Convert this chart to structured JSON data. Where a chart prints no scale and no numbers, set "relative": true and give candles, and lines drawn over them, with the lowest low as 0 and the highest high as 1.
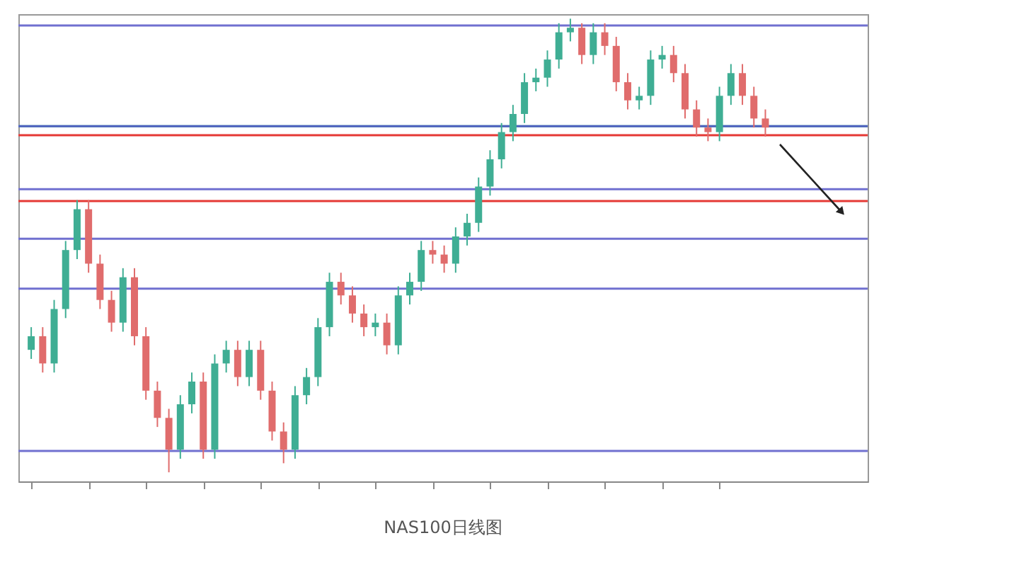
{
  "chart_data": {
    "type": "candlestick",
    "title": "NAS100日线图",
    "relative": true,
    "categories": [
      null,
      null,
      null,
      null,
      null,
      null,
      null,
      null,
      null,
      null,
      null,
      null,
      null,
      null,
      null,
      null,
      null,
      null,
      null,
      null,
      null,
      null,
      null,
      null,
      null,
      null,
      null,
      null,
      null,
      null,
      null,
      null,
      null,
      null,
      null,
      null,
      null,
      null,
      null,
      null,
      null,
      null,
      null,
      null,
      null,
      null,
      null,
      null,
      null,
      null,
      null,
      null,
      null,
      null,
      null,
      null,
      null,
      null,
      null,
      null,
      null,
      null,
      null,
      null,
      null
    ],
    "ohlc": [
      [
        0.27,
        0.32,
        0.25,
        0.3
      ],
      [
        0.3,
        0.32,
        0.22,
        0.24
      ],
      [
        0.24,
        0.38,
        0.22,
        0.36
      ],
      [
        0.36,
        0.51,
        0.34,
        0.49
      ],
      [
        0.49,
        0.6,
        0.47,
        0.58
      ],
      [
        0.58,
        0.6,
        0.44,
        0.46
      ],
      [
        0.46,
        0.48,
        0.36,
        0.38
      ],
      [
        0.38,
        0.4,
        0.31,
        0.33
      ],
      [
        0.33,
        0.45,
        0.31,
        0.43
      ],
      [
        0.43,
        0.45,
        0.28,
        0.3
      ],
      [
        0.3,
        0.32,
        0.16,
        0.18
      ],
      [
        0.18,
        0.2,
        0.1,
        0.12
      ],
      [
        0.12,
        0.14,
        0.0,
        0.05
      ],
      [
        0.05,
        0.17,
        0.03,
        0.15
      ],
      [
        0.15,
        0.22,
        0.13,
        0.2
      ],
      [
        0.2,
        0.22,
        0.03,
        0.05
      ],
      [
        0.05,
        0.26,
        0.03,
        0.24
      ],
      [
        0.24,
        0.29,
        0.22,
        0.27
      ],
      [
        0.27,
        0.29,
        0.19,
        0.21
      ],
      [
        0.21,
        0.29,
        0.19,
        0.27
      ],
      [
        0.27,
        0.29,
        0.16,
        0.18
      ],
      [
        0.18,
        0.2,
        0.07,
        0.09
      ],
      [
        0.09,
        0.11,
        0.02,
        0.05
      ],
      [
        0.05,
        0.19,
        0.03,
        0.17
      ],
      [
        0.17,
        0.23,
        0.15,
        0.21
      ],
      [
        0.21,
        0.34,
        0.19,
        0.32
      ],
      [
        0.32,
        0.44,
        0.3,
        0.42
      ],
      [
        0.42,
        0.44,
        0.37,
        0.39
      ],
      [
        0.39,
        0.41,
        0.33,
        0.35
      ],
      [
        0.35,
        0.37,
        0.3,
        0.32
      ],
      [
        0.32,
        0.35,
        0.3,
        0.33
      ],
      [
        0.33,
        0.35,
        0.26,
        0.28
      ],
      [
        0.28,
        0.41,
        0.26,
        0.39
      ],
      [
        0.39,
        0.44,
        0.37,
        0.42
      ],
      [
        0.42,
        0.51,
        0.4,
        0.49
      ],
      [
        0.49,
        0.51,
        0.46,
        0.48
      ],
      [
        0.48,
        0.5,
        0.44,
        0.46
      ],
      [
        0.46,
        0.54,
        0.44,
        0.52
      ],
      [
        0.52,
        0.57,
        0.5,
        0.55
      ],
      [
        0.55,
        0.65,
        0.53,
        0.63
      ],
      [
        0.63,
        0.71,
        0.61,
        0.69
      ],
      [
        0.69,
        0.77,
        0.67,
        0.75
      ],
      [
        0.75,
        0.81,
        0.73,
        0.79
      ],
      [
        0.79,
        0.88,
        0.77,
        0.86
      ],
      [
        0.86,
        0.89,
        0.84,
        0.87
      ],
      [
        0.87,
        0.93,
        0.85,
        0.91
      ],
      [
        0.91,
        0.99,
        0.89,
        0.97
      ],
      [
        0.97,
        1.0,
        0.95,
        0.98
      ],
      [
        0.98,
        0.99,
        0.9,
        0.92
      ],
      [
        0.92,
        0.99,
        0.9,
        0.97
      ],
      [
        0.97,
        0.99,
        0.92,
        0.94
      ],
      [
        0.94,
        0.96,
        0.84,
        0.86
      ],
      [
        0.86,
        0.88,
        0.8,
        0.82
      ],
      [
        0.82,
        0.85,
        0.8,
        0.83
      ],
      [
        0.83,
        0.93,
        0.81,
        0.91
      ],
      [
        0.91,
        0.94,
        0.89,
        0.92
      ],
      [
        0.92,
        0.94,
        0.86,
        0.88
      ],
      [
        0.88,
        0.9,
        0.78,
        0.8
      ],
      [
        0.8,
        0.82,
        0.74,
        0.76
      ],
      [
        0.76,
        0.78,
        0.73,
        0.75
      ],
      [
        0.75,
        0.85,
        0.73,
        0.83
      ],
      [
        0.83,
        0.9,
        0.81,
        0.88
      ],
      [
        0.88,
        0.9,
        0.81,
        0.83
      ],
      [
        0.83,
        0.85,
        0.76,
        0.78
      ],
      [
        0.78,
        0.8,
        0.74,
        0.76
      ]
    ],
    "colors": [
      "#3fae94",
      "#e06c6c",
      "#3fae94",
      "#3fae94",
      "#3fae94",
      "#e06c6c",
      "#e06c6c",
      "#e06c6c",
      "#3fae94",
      "#e06c6c",
      "#e06c6c",
      "#e06c6c",
      "#e06c6c",
      "#3fae94",
      "#3fae94",
      "#e06c6c",
      "#3fae94",
      "#3fae94",
      "#e06c6c",
      "#3fae94",
      "#e06c6c",
      "#e06c6c",
      "#e06c6c",
      "#3fae94",
      "#3fae94",
      "#3fae94",
      "#3fae94",
      "#e06c6c",
      "#e06c6c",
      "#e06c6c",
      "#3fae94",
      "#e06c6c",
      "#3fae94",
      "#3fae94",
      "#3fae94",
      "#e06c6c",
      "#e06c6c",
      "#3fae94",
      "#3fae94",
      "#3fae94",
      "#3fae94",
      "#3fae94",
      "#3fae94",
      "#3fae94",
      "#3fae94",
      "#3fae94",
      "#3fae94",
      "#3fae94",
      "#e06c6c",
      "#3fae94",
      "#e06c6c",
      "#e06c6c",
      "#e06c6c",
      "#3fae94",
      "#3fae94",
      "#3fae94",
      "#e06c6c",
      "#e06c6c",
      "#e06c6c",
      "#e06c6c",
      "#3fae94",
      "#3fae94",
      "#e06c6c",
      "#e06c6c",
      "#e06c6c"
    ],
    "ref_lines": [
      {
        "axis": "y",
        "value": 0.763,
        "color": "#5cc9a7"
      },
      {
        "axis": "y",
        "value": 0.985,
        "color": "#7070d0"
      },
      {
        "axis": "y",
        "value": 0.763,
        "color": "#5060c0"
      },
      {
        "axis": "y",
        "value": 0.624,
        "color": "#7070d0"
      },
      {
        "axis": "y",
        "value": 0.515,
        "color": "#7070d0"
      },
      {
        "axis": "y",
        "value": 0.405,
        "color": "#7070d0"
      },
      {
        "axis": "y",
        "value": 0.047,
        "color": "#7070d0"
      },
      {
        "axis": "y",
        "value": 0.743,
        "color": "#e53935"
      },
      {
        "axis": "y",
        "value": 0.598,
        "color": "#e53935"
      }
    ],
    "grid": false,
    "tick_labels": false
  }
}
